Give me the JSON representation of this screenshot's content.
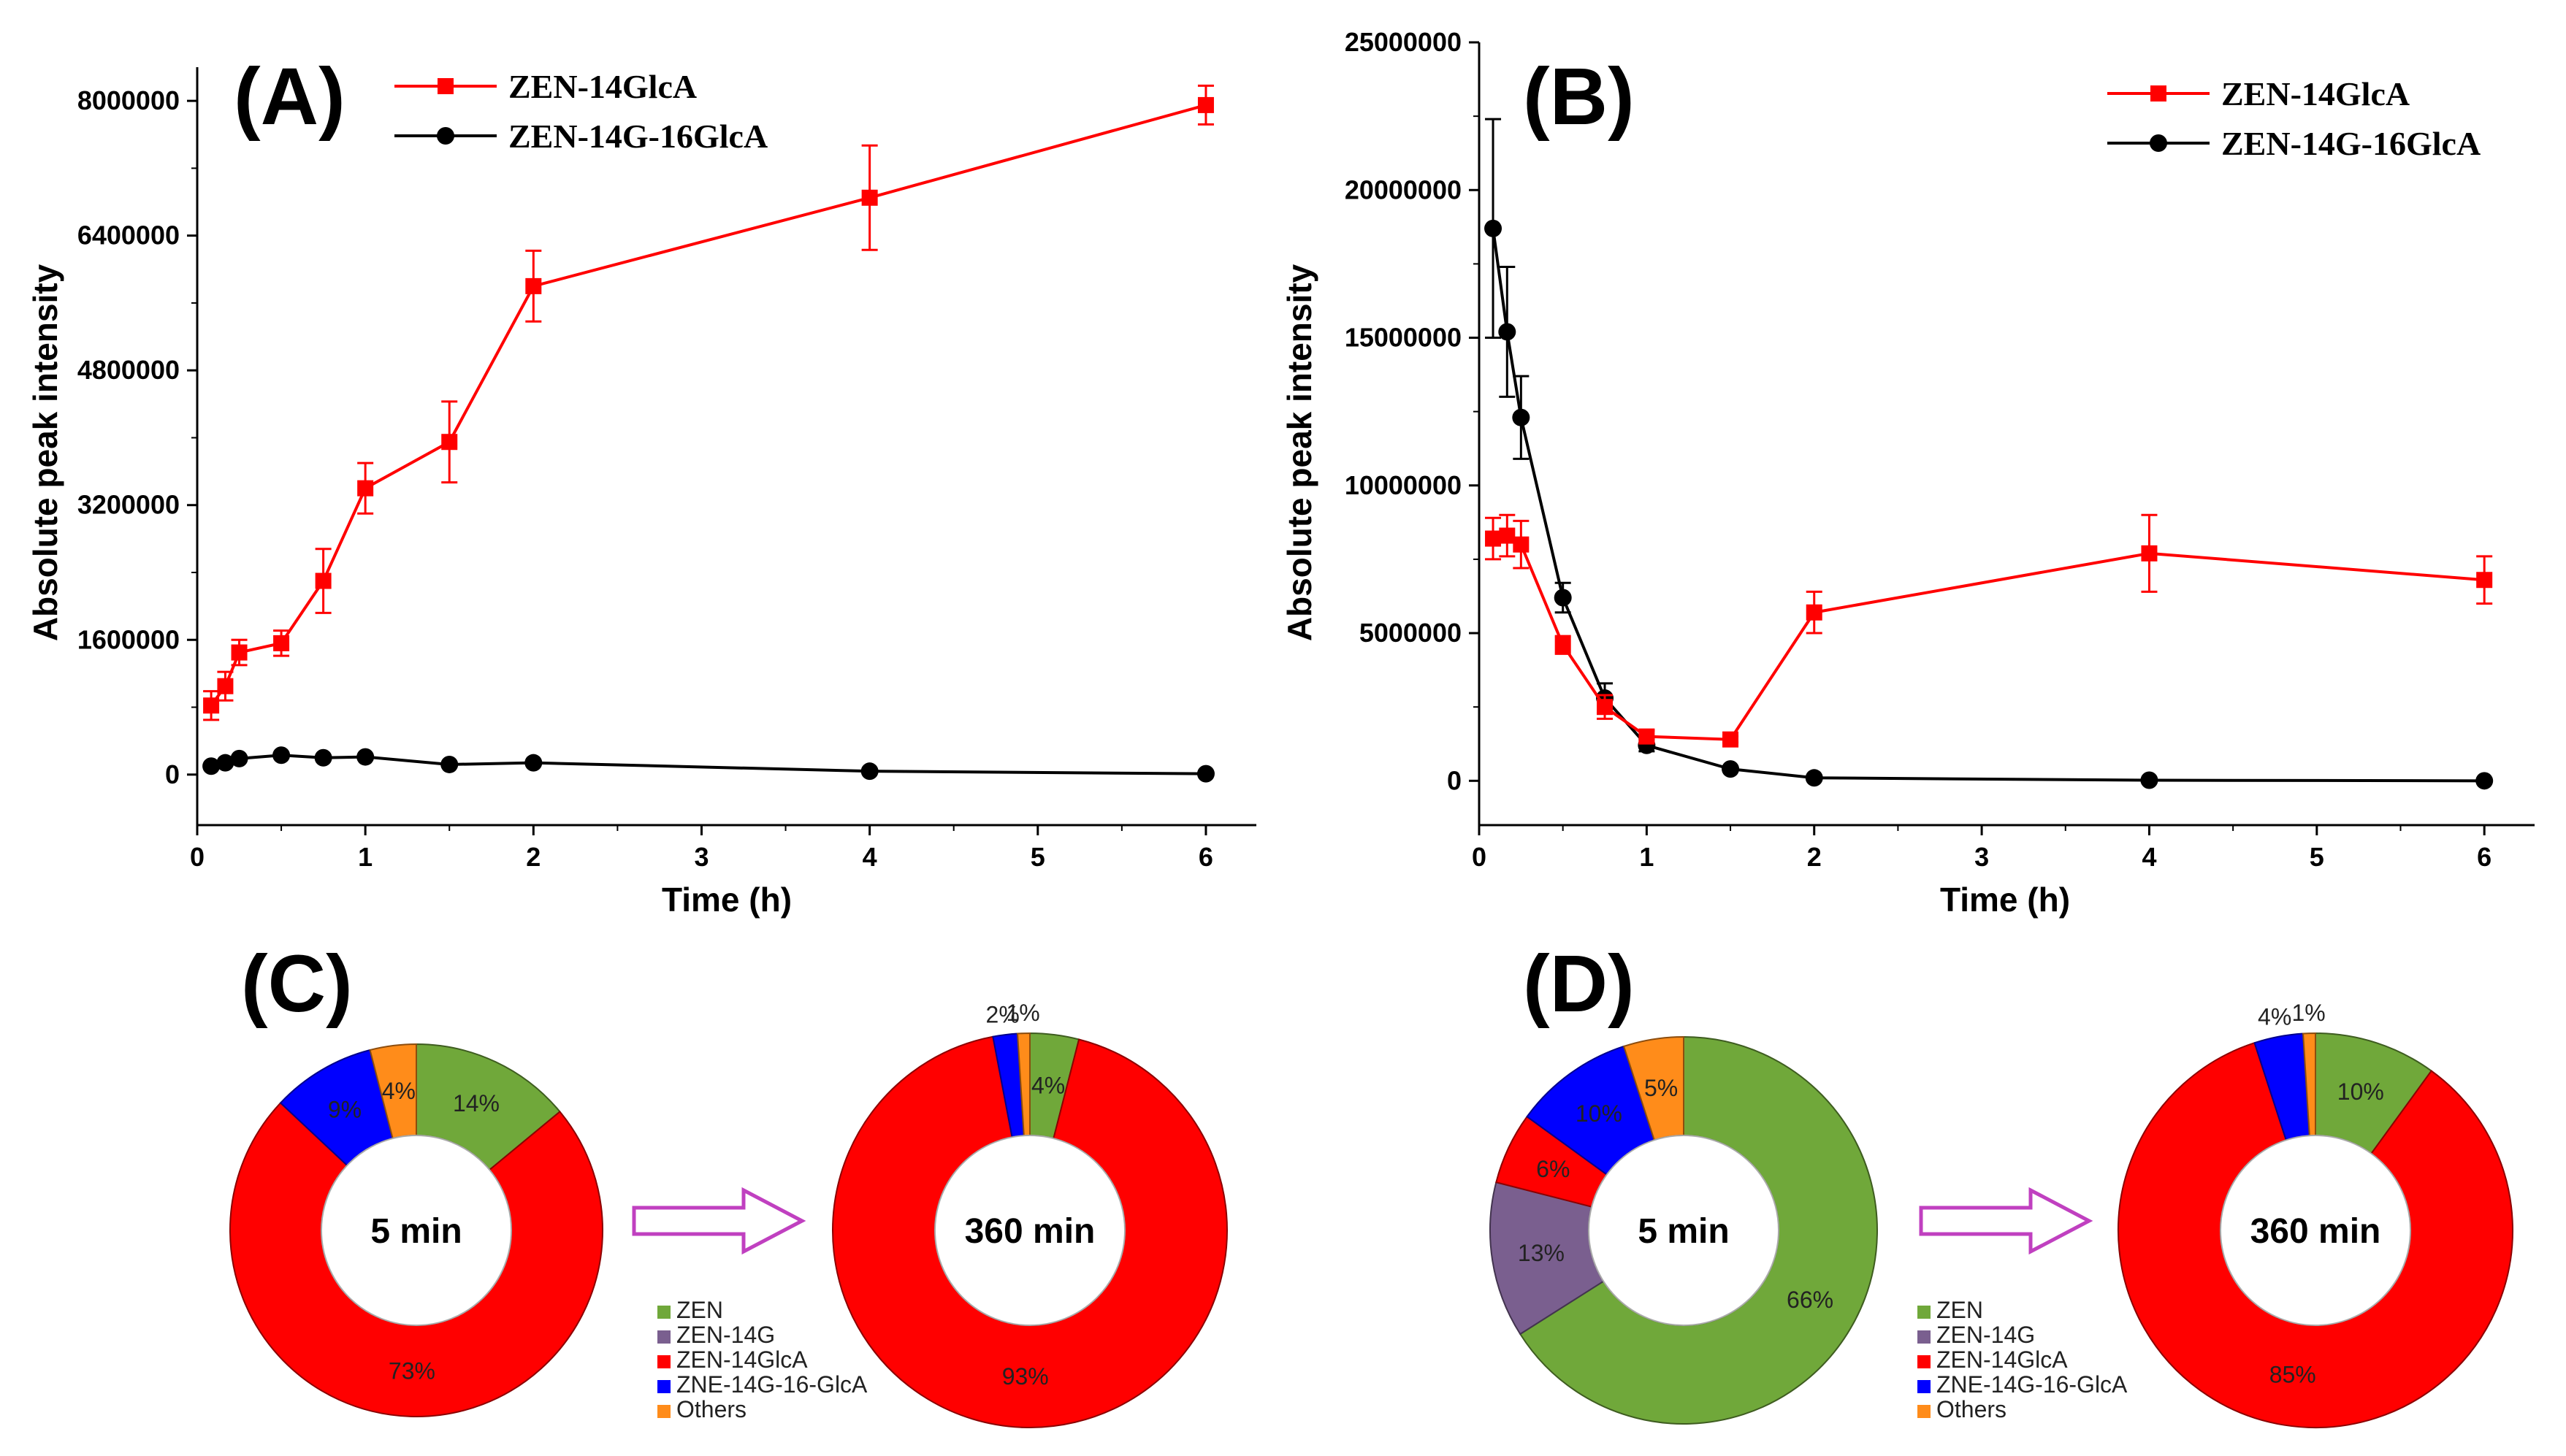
{
  "colors": {
    "red": "#ff0000",
    "black": "#000000",
    "green": "#70a83a",
    "purple": "#7a5f8f",
    "blue": "#0000ff",
    "orange": "#ff8c1a",
    "arrow": "#c040c0"
  },
  "chart_data": [
    {
      "type": "line",
      "panel_label": "(A)",
      "xlabel": "Time (h)",
      "ylabel": "Absolute peak intensity",
      "xlim": [
        0,
        6.3
      ],
      "ylim": [
        -600000,
        8400000
      ],
      "xticks": [
        0,
        1,
        2,
        3,
        4,
        5,
        6
      ],
      "yticks": [
        0,
        1600000,
        3200000,
        4800000,
        6400000,
        8000000
      ],
      "ytick_labels": [
        "0",
        "1600000",
        "3200000",
        "4800000",
        "6400000",
        "8000000"
      ],
      "legend_position": "top",
      "series": [
        {
          "name": "ZEN-14GlcA",
          "color": "red",
          "marker": "square",
          "x": [
            0.083,
            0.167,
            0.25,
            0.5,
            0.75,
            1,
            1.5,
            2,
            4,
            6
          ],
          "y": [
            820000,
            1050000,
            1450000,
            1560000,
            2300000,
            3400000,
            3950000,
            5800000,
            6850000,
            7950000
          ],
          "err": [
            170000,
            170000,
            150000,
            150000,
            380000,
            300000,
            480000,
            420000,
            620000,
            230000
          ]
        },
        {
          "name": "ZEN-14G-16GlcA",
          "color": "black",
          "marker": "circle",
          "x": [
            0.083,
            0.167,
            0.25,
            0.5,
            0.75,
            1,
            1.5,
            2,
            4,
            6
          ],
          "y": [
            100000,
            140000,
            190000,
            230000,
            200000,
            210000,
            120000,
            140000,
            40000,
            10000
          ],
          "err": [
            0,
            0,
            0,
            0,
            0,
            0,
            0,
            0,
            0,
            0
          ]
        }
      ]
    },
    {
      "type": "line",
      "panel_label": "(B)",
      "xlabel": "Time (h)",
      "ylabel": "Absolute peak intensity",
      "xlim": [
        0,
        6.3
      ],
      "ylim": [
        -1500000,
        25000000
      ],
      "xticks": [
        0,
        1,
        2,
        3,
        4,
        5,
        6
      ],
      "yticks": [
        0,
        5000000,
        10000000,
        15000000,
        20000000,
        25000000
      ],
      "ytick_labels": [
        "0",
        "5000000",
        "10000000",
        "15000000",
        "20000000",
        "25000000"
      ],
      "legend_position": "top-right",
      "series": [
        {
          "name": "ZEN-14GlcA",
          "color": "red",
          "marker": "square",
          "x": [
            0.083,
            0.167,
            0.25,
            0.5,
            0.75,
            1,
            1.5,
            2,
            4,
            6
          ],
          "y": [
            8200000,
            8300000,
            8000000,
            4600000,
            2500000,
            1500000,
            1400000,
            5700000,
            7700000,
            6800000
          ],
          "err": [
            700000,
            700000,
            800000,
            300000,
            400000,
            200000,
            100000,
            700000,
            1300000,
            800000
          ]
        },
        {
          "name": "ZEN-14G-16GlcA",
          "color": "black",
          "marker": "circle",
          "x": [
            0.083,
            0.167,
            0.25,
            0.5,
            0.75,
            1,
            1.5,
            2,
            4,
            6
          ],
          "y": [
            18700000,
            15200000,
            12300000,
            6200000,
            2800000,
            1200000,
            400000,
            100000,
            20000,
            0
          ],
          "err": [
            3700000,
            2200000,
            1400000,
            500000,
            500000,
            200000,
            0,
            0,
            0,
            0
          ]
        }
      ]
    },
    {
      "type": "pie",
      "panel_label": "(C)",
      "donut": true,
      "center_label": "5 min",
      "slices": [
        {
          "name": "ZEN",
          "value": 14,
          "label": "14%",
          "color": "green"
        },
        {
          "name": "ZEN-14GlcA",
          "value": 73,
          "label": "73%",
          "color": "red"
        },
        {
          "name": "ZNE-14G-16-GlcA",
          "value": 9,
          "label": "9%",
          "color": "blue"
        },
        {
          "name": "Others",
          "value": 4,
          "label": "4%",
          "color": "orange"
        }
      ]
    },
    {
      "type": "pie",
      "panel_label": "(C)",
      "donut": true,
      "center_label": "360 min",
      "slices": [
        {
          "name": "ZEN",
          "value": 4,
          "label": "4%",
          "color": "green"
        },
        {
          "name": "ZEN-14GlcA",
          "value": 93,
          "label": "93%",
          "color": "red"
        },
        {
          "name": "ZNE-14G-16-GlcA",
          "value": 2,
          "label": "2%",
          "color": "blue"
        },
        {
          "name": "Others",
          "value": 1,
          "label": "1%",
          "color": "orange"
        }
      ]
    },
    {
      "type": "pie",
      "panel_label": "(D)",
      "donut": true,
      "center_label": "5 min",
      "slices": [
        {
          "name": "ZEN",
          "value": 66,
          "label": "66%",
          "color": "green"
        },
        {
          "name": "ZEN-14G",
          "value": 13,
          "label": "13%",
          "color": "purple"
        },
        {
          "name": "ZEN-14GlcA",
          "value": 6,
          "label": "6%",
          "color": "red"
        },
        {
          "name": "ZNE-14G-16-GlcA",
          "value": 10,
          "label": "10%",
          "color": "blue"
        },
        {
          "name": "Others",
          "value": 5,
          "label": "5%",
          "color": "orange"
        }
      ]
    },
    {
      "type": "pie",
      "panel_label": "(D)",
      "donut": true,
      "center_label": "360 min",
      "slices": [
        {
          "name": "ZEN",
          "value": 10,
          "label": "10%",
          "color": "green"
        },
        {
          "name": "ZEN-14GlcA",
          "value": 85,
          "label": "85%",
          "color": "red"
        },
        {
          "name": "ZNE-14G-16-GlcA",
          "value": 4,
          "label": "4%",
          "color": "blue"
        },
        {
          "name": "Others",
          "value": 1,
          "label": "1%",
          "color": "orange"
        }
      ]
    }
  ],
  "panel_labels": {
    "a": "(A)",
    "b": "(B)",
    "c": "(C)",
    "d": "(D)"
  },
  "pie_legend": [
    {
      "name": "ZEN",
      "color": "green"
    },
    {
      "name": "ZEN-14G",
      "color": "purple"
    },
    {
      "name": "ZEN-14GlcA",
      "color": "red"
    },
    {
      "name": "ZNE-14G-16-GlcA",
      "color": "blue"
    },
    {
      "name": "Others",
      "color": "orange"
    }
  ]
}
